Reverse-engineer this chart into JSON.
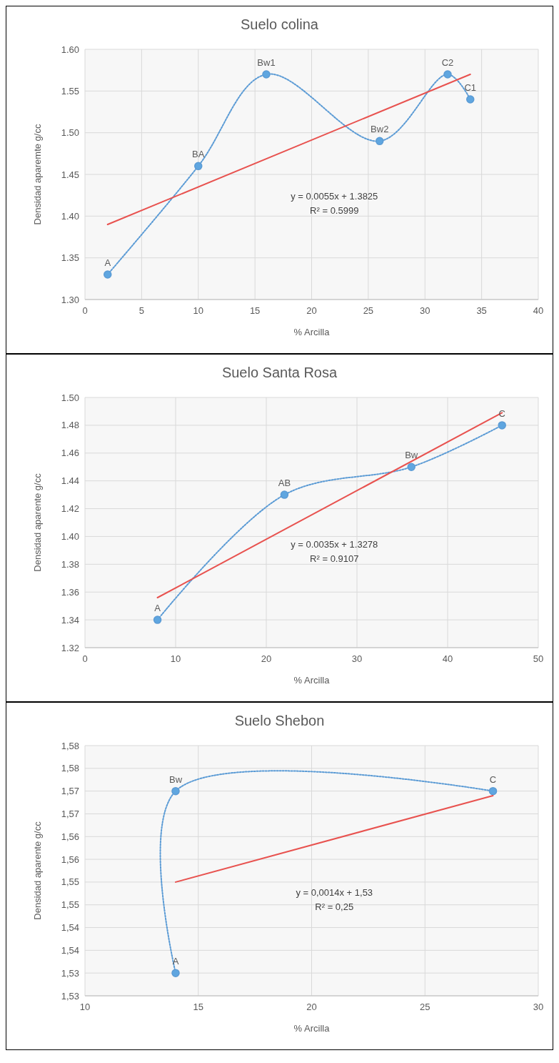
{
  "chart_data": [
    {
      "type": "line",
      "title": "Suelo colina",
      "xlabel": "% Arcilla",
      "ylabel": "Densidad aparemte g/cc",
      "xlim": [
        0,
        40
      ],
      "xticks": [
        0,
        5,
        10,
        15,
        20,
        25,
        30,
        35,
        40
      ],
      "ylim": [
        1.3,
        1.6
      ],
      "yticks": [
        {
          "value": 1.3,
          "label": "1.30"
        },
        {
          "value": 1.35,
          "label": "1.35"
        },
        {
          "value": 1.4,
          "label": "1.40"
        },
        {
          "value": 1.45,
          "label": "1.45"
        },
        {
          "value": 1.5,
          "label": "1.50"
        },
        {
          "value": 1.55,
          "label": "1.55"
        },
        {
          "value": 1.6,
          "label": "1.60"
        }
      ],
      "grid": true,
      "series": [
        {
          "color": "#5b9bd5",
          "marker": "circle",
          "line_style": "dotted",
          "x": [
            2,
            10,
            16,
            26,
            32,
            34
          ],
          "values": [
            1.33,
            1.46,
            1.57,
            1.49,
            1.57,
            1.54
          ]
        },
        {
          "color": "#e8524f",
          "marker": "none",
          "line_style": "solid",
          "x": [
            2,
            34
          ],
          "values": [
            1.39,
            1.57
          ]
        }
      ],
      "annotations": [
        {
          "text": "A",
          "x": 2,
          "y": 1.33
        },
        {
          "text": "BA",
          "x": 10,
          "y": 1.46
        },
        {
          "text": "Bw1",
          "x": 16,
          "y": 1.57
        },
        {
          "text": "Bw2",
          "x": 26,
          "y": 1.49
        },
        {
          "text": "C2",
          "x": 32,
          "y": 1.57
        },
        {
          "text": "C1",
          "x": 34,
          "y": 1.54
        },
        "y = 0.0055x + 1.3825",
        "R² = 0.5999"
      ]
    },
    {
      "type": "line",
      "title": "Suelo Santa Rosa",
      "xlabel": "% Arcilla",
      "ylabel": "Densidad aparente g/cc",
      "xlim": [
        0,
        50
      ],
      "xticks": [
        0,
        10,
        20,
        30,
        40,
        50
      ],
      "ylim": [
        1.32,
        1.5
      ],
      "yticks": [
        {
          "value": 1.32,
          "label": "1.32"
        },
        {
          "value": 1.34,
          "label": "1.34"
        },
        {
          "value": 1.36,
          "label": "1.36"
        },
        {
          "value": 1.38,
          "label": "1.38"
        },
        {
          "value": 1.4,
          "label": "1.40"
        },
        {
          "value": 1.42,
          "label": "1.42"
        },
        {
          "value": 1.44,
          "label": "1.44"
        },
        {
          "value": 1.46,
          "label": "1.46"
        },
        {
          "value": 1.48,
          "label": "1.48"
        },
        {
          "value": 1.5,
          "label": "1.50"
        }
      ],
      "grid": true,
      "series": [
        {
          "color": "#5b9bd5",
          "marker": "circle",
          "line_style": "dotted",
          "x": [
            8,
            22,
            36,
            46
          ],
          "values": [
            1.34,
            1.43,
            1.45,
            1.48
          ]
        },
        {
          "color": "#e8524f",
          "marker": "none",
          "line_style": "solid",
          "x": [
            8,
            46
          ],
          "values": [
            1.356,
            1.489
          ]
        }
      ],
      "annotations": [
        {
          "text": "A",
          "x": 8,
          "y": 1.34
        },
        {
          "text": "AB",
          "x": 22,
          "y": 1.43
        },
        {
          "text": "Bw",
          "x": 36,
          "y": 1.45
        },
        {
          "text": "C",
          "x": 46,
          "y": 1.48
        },
        "y = 0.0035x + 1.3278",
        "R² = 0.9107"
      ]
    },
    {
      "type": "line",
      "title": "Suelo Shebon",
      "xlabel": "% Arcilla",
      "ylabel": "Densidad aparente g/cc",
      "xlim": [
        10,
        30
      ],
      "xticks": [
        10,
        15,
        20,
        25,
        30
      ],
      "ylim": [
        1.525,
        1.58
      ],
      "yticks": [
        {
          "value": 1.525,
          "label": "1,53"
        },
        {
          "value": 1.53,
          "label": "1,53"
        },
        {
          "value": 1.535,
          "label": "1,54"
        },
        {
          "value": 1.54,
          "label": "1,54"
        },
        {
          "value": 1.545,
          "label": "1,55"
        },
        {
          "value": 1.55,
          "label": "1,55"
        },
        {
          "value": 1.555,
          "label": "1,56"
        },
        {
          "value": 1.56,
          "label": "1,56"
        },
        {
          "value": 1.565,
          "label": "1,57"
        },
        {
          "value": 1.57,
          "label": "1,57"
        },
        {
          "value": 1.575,
          "label": "1,58"
        },
        {
          "value": 1.58,
          "label": "1,58"
        }
      ],
      "grid": true,
      "series": [
        {
          "color": "#5b9bd5",
          "marker": "circle",
          "line_style": "dotted",
          "x": [
            14,
            14,
            28
          ],
          "values": [
            1.53,
            1.57,
            1.57
          ]
        },
        {
          "color": "#e8524f",
          "marker": "none",
          "line_style": "solid",
          "x": [
            14,
            28
          ],
          "values": [
            1.55,
            1.569
          ]
        }
      ],
      "annotations": [
        {
          "text": "A",
          "x": 14,
          "y": 1.53
        },
        {
          "text": "Bw",
          "x": 14,
          "y": 1.57
        },
        {
          "text": "C",
          "x": 28,
          "y": 1.57
        },
        "y = 0,0014x + 1,53",
        "R² = 0,25"
      ]
    }
  ]
}
